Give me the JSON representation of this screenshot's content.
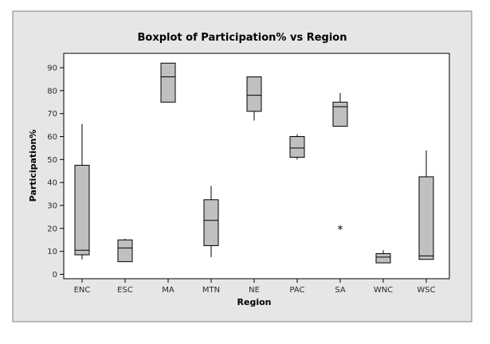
{
  "chart_data": {
    "type": "boxplot",
    "title": "Boxplot of Participation% vs Region",
    "xlabel": "Region",
    "ylabel": "Participation%",
    "ylim": [
      0,
      95
    ],
    "yticks": [
      0,
      10,
      20,
      30,
      40,
      50,
      60,
      70,
      80,
      90
    ],
    "grid": false,
    "categories": [
      "ENC",
      "ESC",
      "MA",
      "MTN",
      "NE",
      "PAC",
      "SA",
      "WNC",
      "WSC"
    ],
    "boxes": [
      {
        "category": "ENC",
        "whisker_low": 6.5,
        "q1": 8.5,
        "median": 10.5,
        "q3": 47.5,
        "whisker_high": 65.5,
        "outliers": []
      },
      {
        "category": "ESC",
        "whisker_low": 5.5,
        "q1": 5.5,
        "median": 11.5,
        "q3": 15.0,
        "whisker_high": 15.5,
        "outliers": []
      },
      {
        "category": "MA",
        "whisker_low": 75.0,
        "q1": 75.0,
        "median": 86.0,
        "q3": 92.0,
        "whisker_high": 92.0,
        "outliers": []
      },
      {
        "category": "MTN",
        "whisker_low": 7.5,
        "q1": 12.5,
        "median": 23.5,
        "q3": 32.5,
        "whisker_high": 38.5,
        "outliers": []
      },
      {
        "category": "NE",
        "whisker_low": 67.0,
        "q1": 71.0,
        "median": 78.0,
        "q3": 86.0,
        "whisker_high": 86.0,
        "outliers": []
      },
      {
        "category": "PAC",
        "whisker_low": 50.0,
        "q1": 51.0,
        "median": 55.0,
        "q3": 60.0,
        "whisker_high": 61.0,
        "outliers": []
      },
      {
        "category": "SA",
        "whisker_low": 64.5,
        "q1": 64.5,
        "median": 73.0,
        "q3": 75.0,
        "whisker_high": 79.0,
        "outliers": [
          20.0
        ]
      },
      {
        "category": "WNC",
        "whisker_low": 5.0,
        "q1": 5.0,
        "median": 7.5,
        "q3": 9.0,
        "whisker_high": 10.5,
        "outliers": []
      },
      {
        "category": "WSC",
        "whisker_low": 6.5,
        "q1": 6.5,
        "median": 8.0,
        "q3": 42.5,
        "whisker_high": 54.0,
        "outliers": []
      }
    ],
    "colors": {
      "outer_background": "#e6e6e6",
      "plot_background": "#ffffff",
      "box_fill": "#c0c0c0",
      "box_stroke": "#000000",
      "tick_text": "#2a2a2a"
    }
  }
}
